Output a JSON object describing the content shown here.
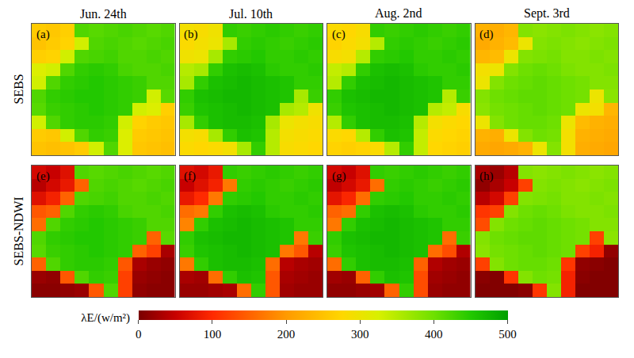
{
  "chart_data": {
    "type": "heatmap",
    "tick_labels": false,
    "columns": [
      "Jun. 24th",
      "Jul. 10th",
      "Aug. 2nd",
      "Sept. 3rd"
    ],
    "rows": [
      "SEBS",
      "SEBS-NDWI"
    ],
    "colorbar": {
      "title": "λE/(w/m²)",
      "range": [
        0,
        500
      ],
      "ticks": [
        0,
        100,
        200,
        300,
        400,
        500
      ]
    },
    "panels": [
      {
        "label": "(a)",
        "row": "SEBS",
        "column": "Jun. 24th",
        "cells": [
          [
            260,
            255,
            265,
            420,
            415,
            420,
            425,
            420,
            415,
            420
          ],
          [
            250,
            260,
            270,
            330,
            420,
            425,
            420,
            415,
            420,
            425
          ],
          [
            265,
            270,
            330,
            420,
            425,
            430,
            420,
            420,
            425,
            420
          ],
          [
            320,
            330,
            420,
            440,
            445,
            440,
            425,
            420,
            420,
            425
          ],
          [
            330,
            420,
            440,
            445,
            450,
            445,
            440,
            435,
            420,
            420
          ],
          [
            420,
            440,
            445,
            450,
            450,
            445,
            440,
            435,
            330,
            415
          ],
          [
            415,
            435,
            440,
            445,
            450,
            445,
            440,
            330,
            320,
            265
          ],
          [
            330,
            420,
            440,
            445,
            445,
            440,
            330,
            270,
            260,
            255
          ],
          [
            260,
            255,
            330,
            420,
            440,
            435,
            320,
            260,
            255,
            250
          ],
          [
            250,
            245,
            250,
            260,
            330,
            420,
            320,
            255,
            250,
            245
          ]
        ]
      },
      {
        "label": "(b)",
        "row": "SEBS",
        "column": "Jul. 10th",
        "cells": [
          [
            290,
            285,
            295,
            440,
            435,
            440,
            445,
            440,
            435,
            440
          ],
          [
            280,
            290,
            300,
            360,
            440,
            445,
            440,
            435,
            440,
            445
          ],
          [
            295,
            300,
            360,
            440,
            445,
            450,
            440,
            440,
            445,
            440
          ],
          [
            350,
            360,
            440,
            460,
            465,
            460,
            445,
            440,
            440,
            445
          ],
          [
            360,
            440,
            460,
            465,
            470,
            465,
            460,
            455,
            440,
            440
          ],
          [
            440,
            460,
            465,
            470,
            470,
            465,
            460,
            455,
            360,
            435
          ],
          [
            435,
            455,
            460,
            465,
            470,
            465,
            460,
            360,
            350,
            295
          ],
          [
            360,
            440,
            460,
            465,
            465,
            460,
            360,
            300,
            290,
            285
          ],
          [
            290,
            285,
            360,
            440,
            460,
            455,
            350,
            290,
            285,
            280
          ],
          [
            280,
            275,
            280,
            290,
            360,
            440,
            350,
            285,
            280,
            275
          ]
        ]
      },
      {
        "label": "(c)",
        "row": "SEBS",
        "column": "Aug. 2nd",
        "cells": [
          [
            280,
            275,
            285,
            440,
            435,
            440,
            445,
            440,
            435,
            440
          ],
          [
            270,
            280,
            290,
            350,
            440,
            445,
            440,
            435,
            440,
            445
          ],
          [
            285,
            290,
            350,
            440,
            445,
            450,
            440,
            440,
            445,
            440
          ],
          [
            340,
            350,
            440,
            460,
            465,
            460,
            445,
            440,
            440,
            445
          ],
          [
            350,
            440,
            460,
            465,
            470,
            465,
            460,
            455,
            440,
            440
          ],
          [
            440,
            460,
            465,
            470,
            470,
            465,
            460,
            455,
            350,
            435
          ],
          [
            435,
            455,
            460,
            465,
            470,
            465,
            460,
            350,
            340,
            285
          ],
          [
            350,
            440,
            460,
            465,
            465,
            460,
            350,
            290,
            280,
            275
          ],
          [
            280,
            275,
            350,
            440,
            460,
            455,
            340,
            280,
            275,
            270
          ],
          [
            270,
            265,
            270,
            280,
            350,
            440,
            340,
            275,
            270,
            265
          ]
        ]
      },
      {
        "label": "(d)",
        "row": "SEBS",
        "column": "Sept. 3rd",
        "cells": [
          [
            230,
            225,
            235,
            385,
            380,
            385,
            390,
            385,
            380,
            385
          ],
          [
            220,
            230,
            240,
            300,
            385,
            390,
            385,
            380,
            385,
            390
          ],
          [
            235,
            240,
            300,
            385,
            390,
            395,
            385,
            385,
            390,
            385
          ],
          [
            290,
            300,
            385,
            400,
            405,
            400,
            390,
            385,
            385,
            390
          ],
          [
            300,
            385,
            400,
            405,
            410,
            405,
            400,
            395,
            385,
            385
          ],
          [
            385,
            400,
            405,
            410,
            410,
            405,
            400,
            395,
            300,
            380
          ],
          [
            380,
            395,
            400,
            405,
            410,
            405,
            400,
            300,
            290,
            235
          ],
          [
            300,
            385,
            400,
            405,
            405,
            400,
            300,
            240,
            230,
            225
          ],
          [
            230,
            225,
            300,
            385,
            400,
            395,
            290,
            230,
            225,
            220
          ],
          [
            220,
            215,
            220,
            230,
            300,
            385,
            290,
            225,
            220,
            215
          ]
        ]
      },
      {
        "label": "(e)",
        "row": "SEBS-NDWI",
        "column": "Jun. 24th",
        "cells": [
          [
            60,
            50,
            70,
            420,
            415,
            420,
            425,
            420,
            415,
            420
          ],
          [
            40,
            60,
            80,
            150,
            420,
            425,
            420,
            415,
            420,
            425
          ],
          [
            70,
            90,
            150,
            420,
            425,
            430,
            420,
            420,
            425,
            420
          ],
          [
            140,
            150,
            420,
            440,
            445,
            440,
            425,
            420,
            420,
            425
          ],
          [
            160,
            420,
            440,
            445,
            450,
            445,
            440,
            435,
            420,
            420
          ],
          [
            420,
            440,
            445,
            450,
            450,
            445,
            440,
            435,
            150,
            415
          ],
          [
            415,
            435,
            440,
            445,
            450,
            445,
            440,
            150,
            120,
            30
          ],
          [
            150,
            420,
            440,
            445,
            445,
            440,
            140,
            30,
            20,
            15
          ],
          [
            20,
            15,
            140,
            420,
            440,
            435,
            120,
            20,
            15,
            10
          ],
          [
            10,
            10,
            15,
            20,
            140,
            420,
            120,
            15,
            10,
            10
          ]
        ]
      },
      {
        "label": "(f)",
        "row": "SEBS-NDWI",
        "column": "Jul. 10th",
        "cells": [
          [
            70,
            60,
            80,
            440,
            435,
            440,
            445,
            440,
            435,
            440
          ],
          [
            50,
            70,
            90,
            170,
            440,
            445,
            440,
            435,
            440,
            445
          ],
          [
            80,
            100,
            170,
            440,
            445,
            450,
            440,
            440,
            445,
            440
          ],
          [
            160,
            170,
            440,
            460,
            465,
            460,
            445,
            440,
            440,
            445
          ],
          [
            180,
            440,
            460,
            465,
            470,
            465,
            460,
            455,
            440,
            440
          ],
          [
            440,
            460,
            465,
            470,
            470,
            465,
            460,
            455,
            170,
            435
          ],
          [
            435,
            455,
            460,
            465,
            470,
            465,
            460,
            170,
            140,
            40
          ],
          [
            170,
            440,
            460,
            465,
            465,
            460,
            160,
            40,
            30,
            25
          ],
          [
            30,
            25,
            160,
            440,
            460,
            455,
            140,
            30,
            25,
            20
          ],
          [
            20,
            20,
            25,
            30,
            160,
            440,
            140,
            25,
            20,
            20
          ]
        ]
      },
      {
        "label": "(g)",
        "row": "SEBS-NDWI",
        "column": "Aug. 2nd",
        "cells": [
          [
            60,
            50,
            70,
            440,
            435,
            440,
            445,
            440,
            435,
            440
          ],
          [
            45,
            60,
            80,
            160,
            440,
            445,
            440,
            435,
            440,
            445
          ],
          [
            75,
            95,
            160,
            440,
            445,
            450,
            440,
            440,
            445,
            440
          ],
          [
            150,
            160,
            440,
            460,
            465,
            460,
            445,
            440,
            440,
            445
          ],
          [
            170,
            440,
            460,
            465,
            470,
            465,
            460,
            455,
            440,
            440
          ],
          [
            440,
            460,
            465,
            470,
            470,
            465,
            460,
            455,
            160,
            435
          ],
          [
            435,
            455,
            460,
            465,
            470,
            465,
            460,
            160,
            130,
            35
          ],
          [
            160,
            440,
            460,
            465,
            465,
            460,
            150,
            35,
            25,
            20
          ],
          [
            25,
            20,
            150,
            440,
            460,
            455,
            130,
            25,
            20,
            15
          ],
          [
            15,
            15,
            20,
            25,
            150,
            440,
            130,
            20,
            15,
            15
          ]
        ]
      },
      {
        "label": "(h)",
        "row": "SEBS-NDWI",
        "column": "Sept. 3rd",
        "cells": [
          [
            30,
            20,
            40,
            385,
            380,
            385,
            390,
            385,
            380,
            385
          ],
          [
            15,
            30,
            50,
            120,
            385,
            390,
            385,
            380,
            385,
            390
          ],
          [
            40,
            60,
            120,
            385,
            390,
            395,
            385,
            385,
            390,
            385
          ],
          [
            110,
            120,
            385,
            400,
            405,
            400,
            390,
            385,
            385,
            390
          ],
          [
            130,
            385,
            400,
            405,
            410,
            405,
            400,
            395,
            385,
            385
          ],
          [
            385,
            400,
            405,
            410,
            410,
            405,
            400,
            395,
            120,
            380
          ],
          [
            380,
            395,
            400,
            405,
            410,
            405,
            400,
            120,
            90,
            15
          ],
          [
            120,
            385,
            400,
            405,
            405,
            400,
            110,
            15,
            10,
            5
          ],
          [
            10,
            5,
            110,
            385,
            400,
            395,
            90,
            10,
            5,
            5
          ],
          [
            5,
            5,
            5,
            10,
            110,
            385,
            90,
            5,
            5,
            5
          ]
        ]
      }
    ]
  }
}
